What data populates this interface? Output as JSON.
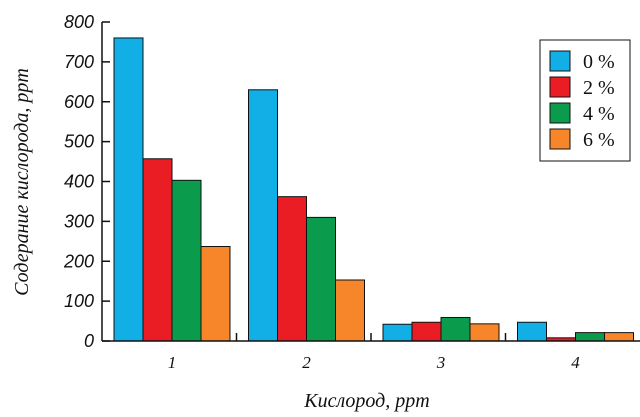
{
  "chart_data": {
    "type": "bar",
    "categories": [
      "1",
      "2",
      "3",
      "4"
    ],
    "series": [
      {
        "name": "0 %",
        "color": "#12aee6",
        "values": [
          760,
          630,
          42,
          47
        ]
      },
      {
        "name": "2 %",
        "color": "#ea1d25",
        "values": [
          457,
          362,
          47,
          8
        ]
      },
      {
        "name": "4 %",
        "color": "#0a9b4c",
        "values": [
          403,
          310,
          59,
          21
        ]
      },
      {
        "name": "6 %",
        "color": "#f7862a",
        "values": [
          237,
          153,
          43,
          21
        ]
      }
    ],
    "title": "",
    "xlabel": "Кислород, ppm",
    "ylabel": "Содерание кислорода, ppm",
    "ylim": [
      0,
      800
    ],
    "yticks": [
      "0",
      "100",
      "200",
      "300",
      "400",
      "500",
      "600",
      "700",
      "800"
    ],
    "grid": false,
    "legend_position": "top-right"
  }
}
